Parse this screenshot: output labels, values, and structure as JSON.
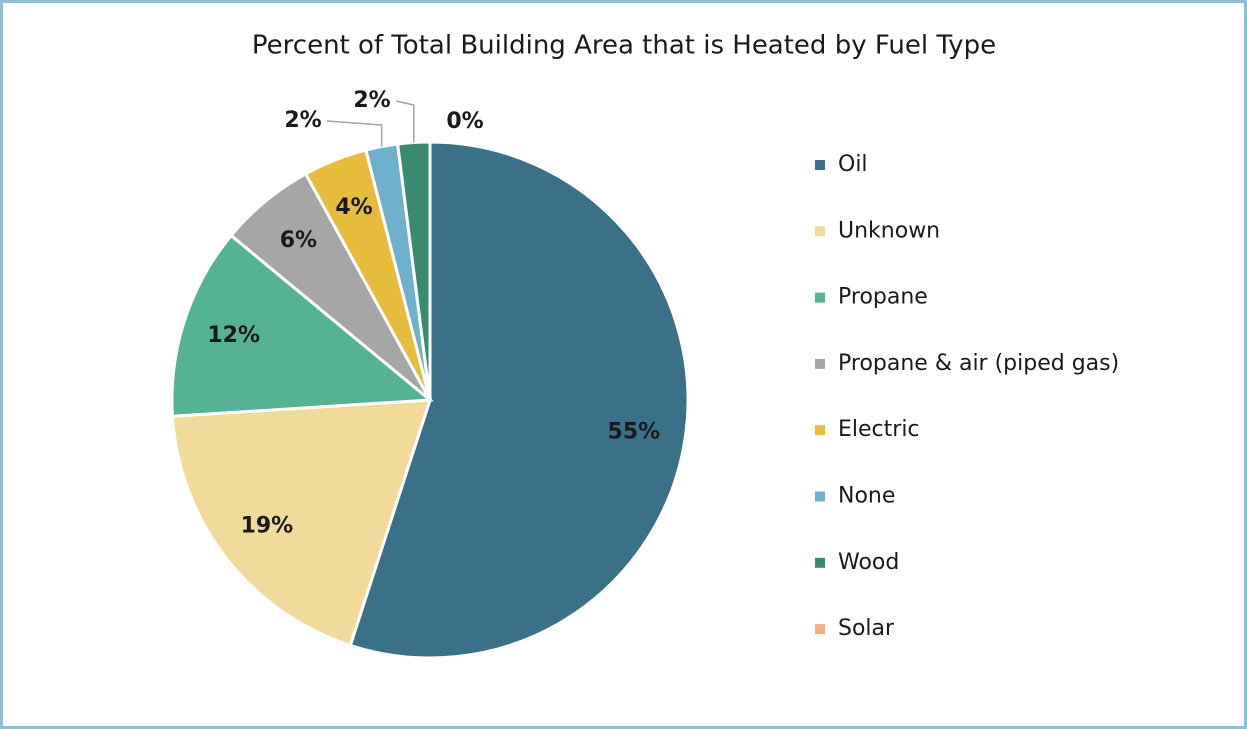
{
  "chart_data": {
    "type": "pie",
    "title": "Percent of Total Building Area that is Heated by  Fuel Type",
    "categories": [
      "Oil",
      "Unknown",
      "Propane",
      "Propane & air (piped gas)",
      "Electric",
      "None",
      "Wood",
      "Solar"
    ],
    "values": [
      55,
      19,
      12,
      6,
      4,
      2,
      2,
      0
    ],
    "value_labels": [
      "55%",
      "19%",
      "12%",
      "6%",
      "4%",
      "2%",
      "2%",
      "0%"
    ],
    "colors": [
      "#3b7089",
      "#f0db9a",
      "#55b393",
      "#a6a6a6",
      "#e6bc3c",
      "#6fb0cc",
      "#3a8a70",
      "#f4b183"
    ],
    "legend": "right"
  }
}
